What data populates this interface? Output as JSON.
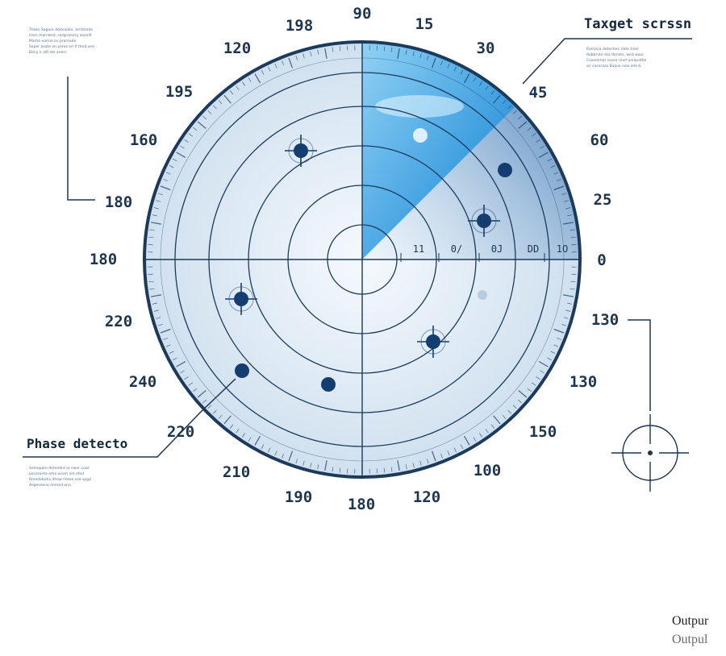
{
  "radar": {
    "colors": {
      "background": "#dbe7f3",
      "ring": "#1b3a5c",
      "sweep": "#2e8fd6",
      "target": "#143e70"
    },
    "angle_labels": [
      "90",
      "15",
      "198",
      "120",
      "30",
      "45",
      "195",
      "60",
      "160",
      "180",
      "25",
      "180",
      "0",
      "220",
      "130",
      "240",
      "130",
      "220",
      "150",
      "210",
      "100",
      "190",
      "180",
      "120"
    ],
    "range_labels": [
      "11",
      "0/",
      "0J",
      "DD",
      "1O"
    ]
  },
  "annotations": {
    "target_screen": {
      "title": "Taxget scrssn",
      "blurb": [
        "Ramana detectors dete treel",
        "Robbrute ska denets, wed waur",
        "Ceasmmor ovare rinef anlapathe",
        "an cosoraas Baque sooi iela &"
      ]
    },
    "phase_detect": {
      "title": "Phase detecto",
      "blurb": [
        "Semepam detnedrd or cwer cuse",
        "peceronte ome ovom om efod",
        "Rmedeboho dhew rieroe ose spgd",
        "Aegeseone anmed ann."
      ]
    },
    "top_left": {
      "blurb": [
        "Thees Sagare dotaseale, arrifatade",
        "trem marnlent, sergramery asonifi",
        "Marhe earnie ov praroade",
        "Seper asate on peres eri if thed ved",
        "Bany n altl ste aners."
      ]
    }
  },
  "footer": {
    "line1": "Outpur",
    "line2": "Outpul"
  }
}
